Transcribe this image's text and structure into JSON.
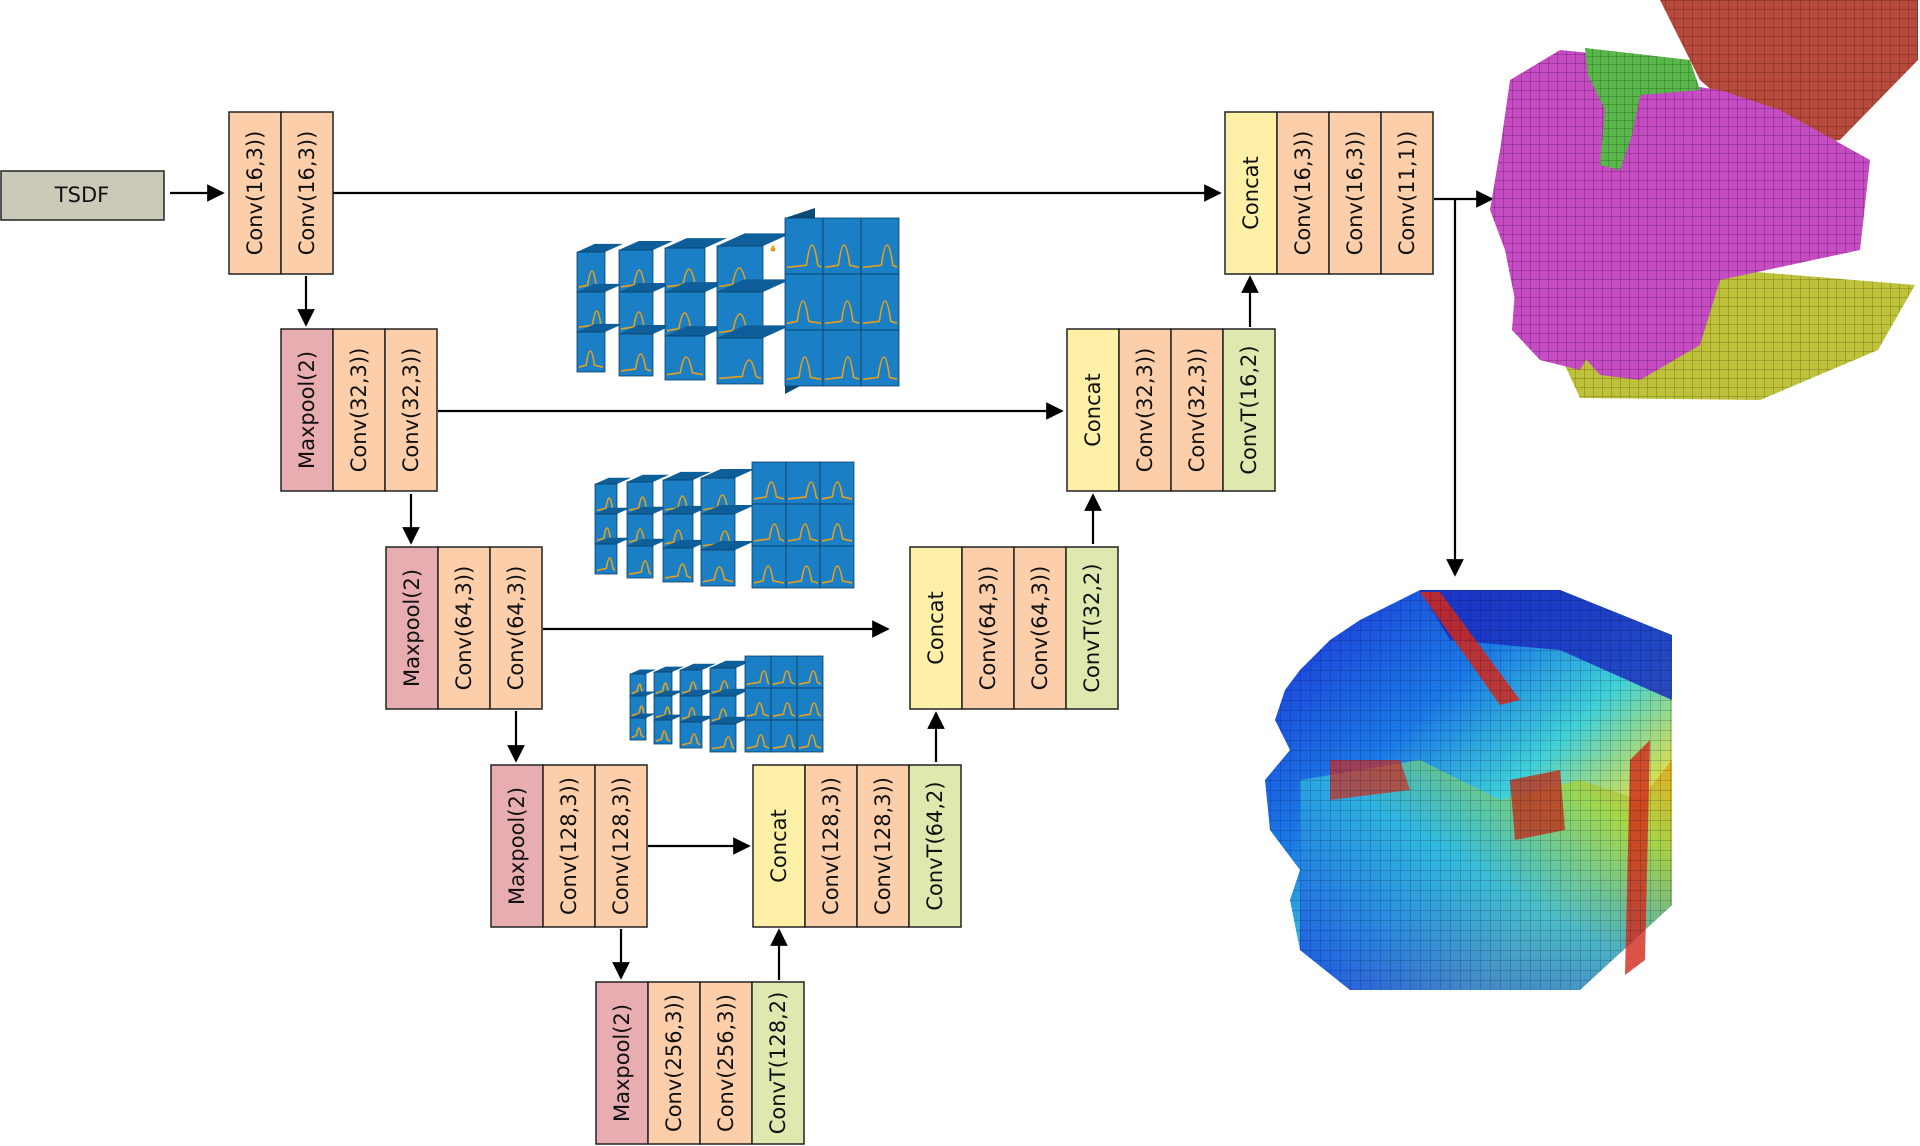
{
  "input_label": "TSDF",
  "colors": {
    "maxpool": "#e8adb0",
    "conv": "#fdceaa",
    "concat": "#fff0a8",
    "convT": "#dde9ae",
    "input": "#cbc9b8",
    "cube_front": "#1a7fc4",
    "cube_side": "#0b4a77",
    "curve": "#e8a01a",
    "semantic_purple": "#c64cc4",
    "semantic_red": "#b54a3d",
    "semantic_green": "#59b64a",
    "semantic_floor": "#bec23a"
  },
  "encoder": {
    "level1": [
      "Conv(16,3))",
      "Conv(16,3))"
    ],
    "level2": [
      "Maxpool(2)",
      "Conv(32,3))",
      "Conv(32,3))"
    ],
    "level3": [
      "Maxpool(2)",
      "Conv(64,3))",
      "Conv(64,3))"
    ],
    "level4": [
      "Maxpool(2)",
      "Conv(128,3))",
      "Conv(128,3))"
    ],
    "bottleneck": [
      "Maxpool(2)",
      "Conv(256,3))",
      "Conv(256,3))",
      "ConvT(128,2)"
    ]
  },
  "decoder": {
    "level4": [
      "Concat",
      "Conv(128,3))",
      "Conv(128,3))",
      "ConvT(64,2)"
    ],
    "level3": [
      "Concat",
      "Conv(64,3))",
      "Conv(64,3))",
      "ConvT(32,2)"
    ],
    "level2": [
      "Concat",
      "Conv(32,3))",
      "Conv(32,3))",
      "ConvT(16,2)"
    ],
    "level1": [
      "Concat",
      "Conv(16,3))",
      "Conv(16,3))",
      "Conv(11,1))"
    ]
  }
}
